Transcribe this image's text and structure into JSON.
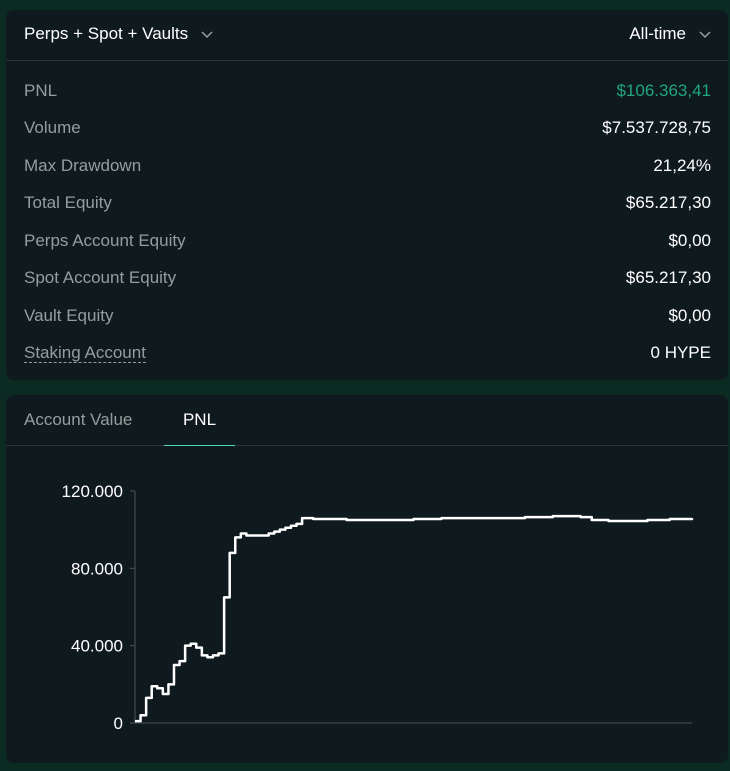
{
  "summary": {
    "market_filter": "Perps + Spot + Vaults",
    "time_range": "All-time",
    "stats": [
      {
        "label": "PNL",
        "value": "$106.363,41",
        "positive": true
      },
      {
        "label": "Volume",
        "value": "$7.537.728,75"
      },
      {
        "label": "Max Drawdown",
        "value": "21,24%"
      },
      {
        "label": "Total Equity",
        "value": "$65.217,30"
      },
      {
        "label": "Perps Account Equity",
        "value": "$0,00"
      },
      {
        "label": "Spot Account Equity",
        "value": "$65.217,30"
      },
      {
        "label": "Vault Equity",
        "value": "$0,00"
      },
      {
        "label": "Staking Account",
        "value": "0 HYPE",
        "dashed": true
      }
    ]
  },
  "chart_tabs": {
    "account_value": "Account Value",
    "pnl": "PNL",
    "active": "pnl"
  },
  "colors": {
    "positive": "#1fa67d",
    "accent": "#50d2c1",
    "line": "#ffffff"
  },
  "chart_data": {
    "type": "line",
    "interpolation": "step",
    "ylim": [
      0,
      120000
    ],
    "yticks": [
      "120.000",
      "80.000",
      "40.000",
      "0"
    ],
    "ytick_values": [
      120000,
      80000,
      40000,
      0
    ],
    "xlim": [
      0,
      100
    ],
    "x": [
      0,
      1,
      2,
      3,
      4,
      5,
      6,
      7,
      8,
      9,
      10,
      11,
      12,
      13,
      14,
      15,
      16,
      17,
      18,
      19,
      20,
      21,
      22,
      23,
      24,
      25,
      26,
      27,
      28,
      29,
      30,
      32,
      34,
      36,
      38,
      40,
      45,
      50,
      55,
      60,
      65,
      70,
      75,
      78,
      80,
      82,
      85,
      88,
      92,
      96,
      100
    ],
    "y": [
      1000,
      4000,
      13000,
      19000,
      18000,
      15000,
      20000,
      30000,
      32000,
      40000,
      41000,
      39000,
      35000,
      34000,
      35000,
      36000,
      65000,
      88000,
      96000,
      98000,
      97000,
      97000,
      97000,
      97000,
      98000,
      99000,
      100000,
      101000,
      102000,
      103000,
      106000,
      105500,
      105500,
      105500,
      105000,
      105000,
      105000,
      105500,
      106000,
      106000,
      106000,
      106500,
      107000,
      107000,
      106500,
      105000,
      104500,
      104500,
      105000,
      105500,
      106000
    ]
  }
}
